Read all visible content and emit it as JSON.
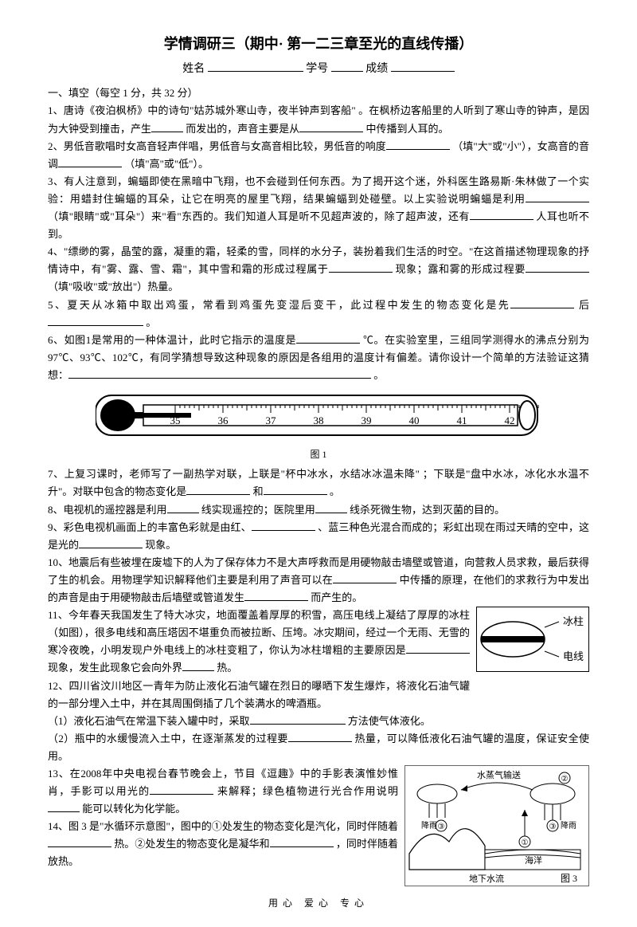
{
  "title": "学情调研三（期中· 第一二三章至光的直线传播）",
  "header": {
    "name_label": "姓名",
    "id_label": "学号",
    "score_label": "成绩"
  },
  "section1": "一、填空（每空 1 分，共 32 分）",
  "q1a": "1、唐诗《夜泊枫桥》中的诗句\"姑苏城外寒山寺，夜半钟声到客船\"",
  "q1b": "。在枫桥边客船里的人听到了寒山寺的钟声，是因为大钟受到撞击，产生",
  "q1c": "而发出的，声音主要是从",
  "q1d": "中传播到人耳的。",
  "q2a": "2、男低音歌唱时女高音轻声伴唱，男低音与女高音相比较，男低音的响度",
  "q2b": "（填\"大\"或\"小\"），女高音的音调",
  "q2c": "（填\"高\"或\"低\"）。",
  "q3a": "3、有人注意到，蝙蝠即使在黑暗中飞翔，也不会碰到任何东西。为了揭开这个迷，外科医生路易斯·朱林做了一个实验：用蜡封住蝙蝠的耳朵，让它在明亮的屋里飞翔，结果蝙蝠到处碰壁。以上实验说明蝙蝠是利用",
  "q3b": "（填\"眼睛\"或\"耳朵\"）来\"看\"东西的。我们知道人耳是听不见超声波的，除了超声波，还有",
  "q3c": "人耳也听不到。",
  "q4a": "4、\"缥缈的雾，晶莹的露，凝重的霜，轻柔的雪，同样的水分子，装扮着我们生活的时空。\"在这首描述物理现象的抒情诗中，有\"雾、露、雪、霜\"，其中雪和霜的形成过程属于",
  "q4b": "现象；露和雾的形成过程要",
  "q4c": "（填\"吸收\"或\"放出\"）热量。",
  "q5a": "5、夏天从冰箱中取出鸡蛋，常看到鸡蛋先变湿后变干，此过程中发生的物态变化是先",
  "q5b": "后",
  "q5c": "。",
  "q6a": "6、如图1是常用的一种体温计，此时它指示的温度是",
  "q6b": "℃。在实验室里，三组同学测得水的沸点分别为 97℃、93℃、102℃，有同学猜想导致这种现象的原因是各组用的温度计有偏差。请你设计一个简单的方法验证这猜想：",
  "q6c": "。",
  "fig1_label": "图 1",
  "thermo_ticks": [
    "35",
    "36",
    "37",
    "38",
    "39",
    "40",
    "41",
    "42"
  ],
  "q7a": "7、上复习课时，老师写了一副热学对联，上联是\"杯中冰水，水结冰冰温未降\"",
  "q7b": "；下联是\"盘中水冰，冰化水水温不升\"。对联中包含的物态变化是",
  "q7c": "和",
  "q7d": "。",
  "q8a": "8、电视机的遥控器是利用",
  "q8b": "线实现遥控的；医院里用",
  "q8c": "线杀死微生物，达到灭菌的目的。",
  "q9a": "9、彩色电视机画面上的丰富色彩就是由红、",
  "q9b": "、蓝三种色光混合而成的；彩虹出现在雨过天晴的空中，这是光的",
  "q9c": "现象。",
  "q10a": "10、地震后有些被埋在废墟下的人为了保存体力不是大声呼救而是用硬物敲击墙壁或管道，向营救人员求救，最后获得了生的机会。用物理学知识解释他们主要是利用了声音可以在",
  "q10b": "中传播的原理，在他们的求救行为中发出的声音是由于用硬物敲击后墙壁或管道发生",
  "q10c": "而产生的。",
  "q11a": "11、今年春天我国发生了特大冰灾，地面覆盖着厚厚的积雪，高压电线上凝结了厚厚的冰柱（如图），很多电线和高压塔因不堪重负而被拉断、压垮。冰灾期间，经过一个无雨、无雪的寒冷夜晚，小明发现户外电线上的冰柱变粗了，你认为冰柱增粗的主要原因是",
  "q11b": "现象，发生此现象它会向外界",
  "q11c": "热。",
  "ice_labels": {
    "top": "冰柱",
    "bottom": "电线"
  },
  "q12a": "12、四川省汶川地区一青年为防止液化石油气罐在烈日的曝晒下发生爆炸，将液化石油气罐的一部分埋入土中，并在其周围倒插了几个装满水的啤酒瓶。",
  "q12_1a": "（1）液化石油气在常温下装入罐中时，采取",
  "q12_1b": "方法使气体液化。",
  "q12_2a": "（2）瓶中的水缓慢流入土中，在逐渐蒸发的过程要",
  "q12_2b": "热量，可以降低液化石油气罐的温度，保证安全使用。",
  "q13a": "13、在2008年中央电视台春节晚会上，节目《逗趣》中的手影表演惟妙惟肖，手影可以用光的",
  "q13b": "来解释；绿色植物进行光合作用说明",
  "q13c": "能可以转化为化学能。",
  "q14a": "14、图 3 是\"水循环示意图\"，图中的①处发生的物态变化是汽化，同时伴随着",
  "q14b": "热。②处发生的物态变化是凝华和",
  "q14c": "，同时伴随着放热。",
  "cycle_labels": {
    "vapor": "水蒸气输送",
    "rain1": "降雨",
    "rain2": "降雨",
    "ocean": "海洋",
    "underflow": "地下水流",
    "fig": "图 3"
  },
  "footer": "用心 爱心 专心"
}
